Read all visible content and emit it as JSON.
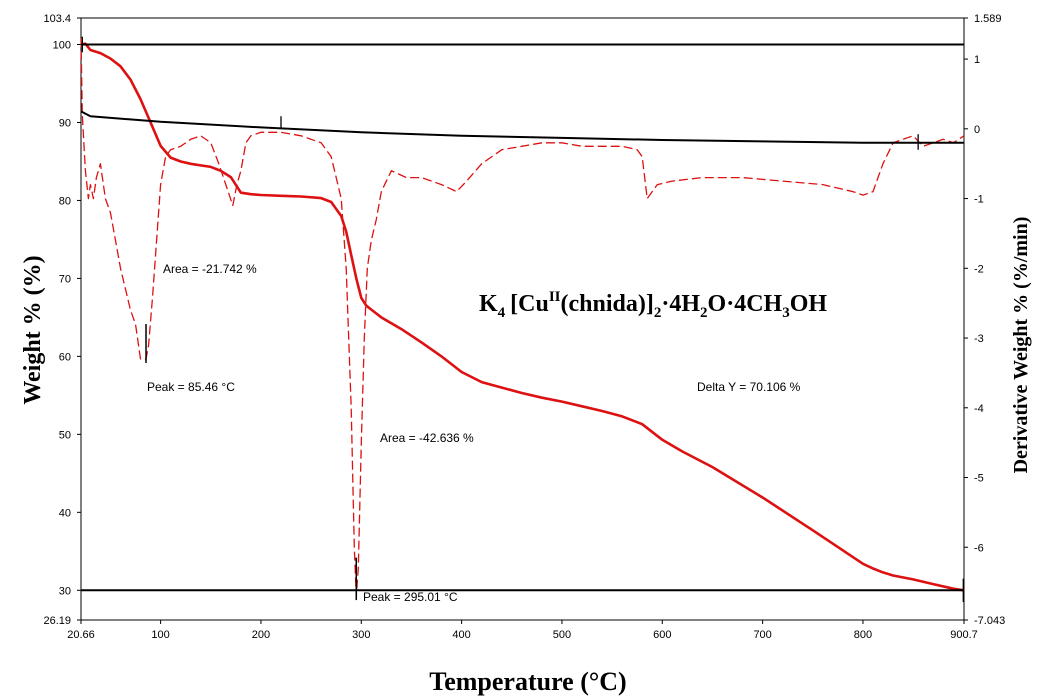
{
  "chart_data": {
    "type": "line",
    "xlabel": "Temperature (°C)",
    "ylabel": "Weight % (%)",
    "y2label": "Derivative Weight % (%/min)",
    "xlim": [
      20.66,
      900.7
    ],
    "ylim": [
      26.19,
      103.4
    ],
    "y2lim": [
      -7.043,
      1.589
    ],
    "x_ticks": [
      "20.66",
      "100",
      "200",
      "300",
      "400",
      "500",
      "600",
      "700",
      "800",
      "900.7"
    ],
    "y_ticks": [
      "103.4",
      "100",
      "90",
      "80",
      "70",
      "60",
      "50",
      "40",
      "30",
      "26.19"
    ],
    "y2_ticks": [
      "1.589",
      "1",
      "0",
      "-1",
      "-2",
      "-3",
      "-4",
      "-5",
      "-6",
      "-7.043"
    ],
    "title_formula": {
      "p1": "K",
      "s1": "4",
      "p2": "[Cu",
      "sup": "II",
      "p3": "(chnida)]",
      "s2": "2",
      "p4": "·4H",
      "s3": "2",
      "p5": "O·4CH",
      "s4": "3",
      "p6": "OH"
    },
    "annotations": {
      "area1": "Area = -21.742 %",
      "peak1": "Peak = 85.46 °C",
      "area2": "Area = -42.636 %",
      "peak2": "Peak = 295.01 °C",
      "delta": "Delta Y = 70.106 %"
    },
    "series": [
      {
        "kind": "weight",
        "color": "#dd1111",
        "style": "solid",
        "x": [
          20.66,
          25,
          30,
          40,
          50,
          60,
          70,
          80,
          90,
          100,
          110,
          120,
          130,
          140,
          150,
          160,
          170,
          180,
          190,
          200,
          220,
          240,
          260,
          270,
          280,
          285,
          290,
          295,
          300,
          305,
          310,
          320,
          340,
          360,
          380,
          400,
          420,
          440,
          460,
          480,
          500,
          520,
          540,
          560,
          580,
          600,
          620,
          650,
          700,
          750,
          800,
          810,
          820,
          830,
          850,
          870,
          890,
          900.7
        ],
        "y": [
          100,
          100.1,
          99.3,
          98.9,
          98.2,
          97.2,
          95.5,
          93,
          90,
          87,
          85.5,
          85,
          84.7,
          84.5,
          84.3,
          83.8,
          83,
          81,
          80.8,
          80.7,
          80.6,
          80.5,
          80.3,
          79.8,
          78,
          76,
          73,
          70,
          67.5,
          66.5,
          66,
          65,
          63.5,
          61.8,
          60,
          58,
          56.7,
          56,
          55.3,
          54.7,
          54.2,
          53.6,
          53,
          52.3,
          51.3,
          49.3,
          47.8,
          45.8,
          41.9,
          37.7,
          33.4,
          32.8,
          32.3,
          31.9,
          31.4,
          30.8,
          30.2,
          30
        ]
      },
      {
        "kind": "derivative",
        "color": "#dd1111",
        "style": "dashed",
        "x": [
          20.66,
          22,
          25,
          28,
          30,
          33,
          36,
          40,
          45,
          50,
          55,
          60,
          65,
          70,
          75,
          80,
          85.46,
          88,
          92,
          96,
          100,
          105,
          110,
          120,
          130,
          140,
          150,
          158,
          165,
          172,
          176,
          180,
          185,
          190,
          200,
          220,
          240,
          260,
          270,
          275,
          280,
          285,
          290,
          293,
          295.01,
          297,
          300,
          303,
          306,
          310,
          315,
          320,
          330,
          345,
          360,
          380,
          395,
          405,
          420,
          440,
          460,
          480,
          500,
          520,
          540,
          560,
          575,
          580,
          585,
          595,
          610,
          640,
          680,
          720,
          760,
          790,
          800,
          810,
          815,
          820,
          830,
          840,
          850,
          860,
          870,
          880,
          890,
          900.7
        ],
        "y": [
          1.3,
          0.2,
          -0.6,
          -1.0,
          -0.8,
          -1.0,
          -0.7,
          -0.5,
          -1.0,
          -1.2,
          -1.6,
          -2.0,
          -2.3,
          -2.6,
          -2.8,
          -3.3,
          -3.3,
          -3.1,
          -2.4,
          -1.6,
          -0.8,
          -0.4,
          -0.3,
          -0.25,
          -0.15,
          -0.1,
          -0.2,
          -0.5,
          -0.8,
          -1.1,
          -0.8,
          -0.6,
          -0.2,
          -0.1,
          -0.05,
          -0.05,
          -0.1,
          -0.2,
          -0.4,
          -0.7,
          -1.0,
          -2.0,
          -4.0,
          -6.0,
          -6.7,
          -6.3,
          -4.5,
          -3.0,
          -2.0,
          -1.6,
          -1.3,
          -0.9,
          -0.6,
          -0.7,
          -0.7,
          -0.8,
          -0.9,
          -0.75,
          -0.5,
          -0.3,
          -0.25,
          -0.2,
          -0.2,
          -0.25,
          -0.25,
          -0.25,
          -0.3,
          -0.4,
          -1.0,
          -0.8,
          -0.75,
          -0.7,
          -0.7,
          -0.75,
          -0.8,
          -0.9,
          -0.95,
          -0.9,
          -0.7,
          -0.5,
          -0.2,
          -0.15,
          -0.1,
          -0.25,
          -0.2,
          -0.15,
          -0.2,
          -0.1
        ]
      },
      {
        "kind": "weight",
        "color": "#000000",
        "style": "solid",
        "x": [
          20.66,
          900.7
        ],
        "y": [
          100,
          100
        ]
      },
      {
        "kind": "weight",
        "color": "#000000",
        "style": "solid",
        "x": [
          20.66,
          900.7
        ],
        "y": [
          30,
          30
        ]
      },
      {
        "kind": "derivative",
        "color": "#000000",
        "style": "solid",
        "x": [
          20.66,
          30,
          100,
          200,
          300,
          400,
          500,
          600,
          700,
          800,
          850,
          900.7
        ],
        "y": [
          0.25,
          0.18,
          0.1,
          0.02,
          -0.05,
          -0.1,
          -0.13,
          -0.16,
          -0.18,
          -0.2,
          -0.2,
          -0.2
        ]
      }
    ]
  }
}
